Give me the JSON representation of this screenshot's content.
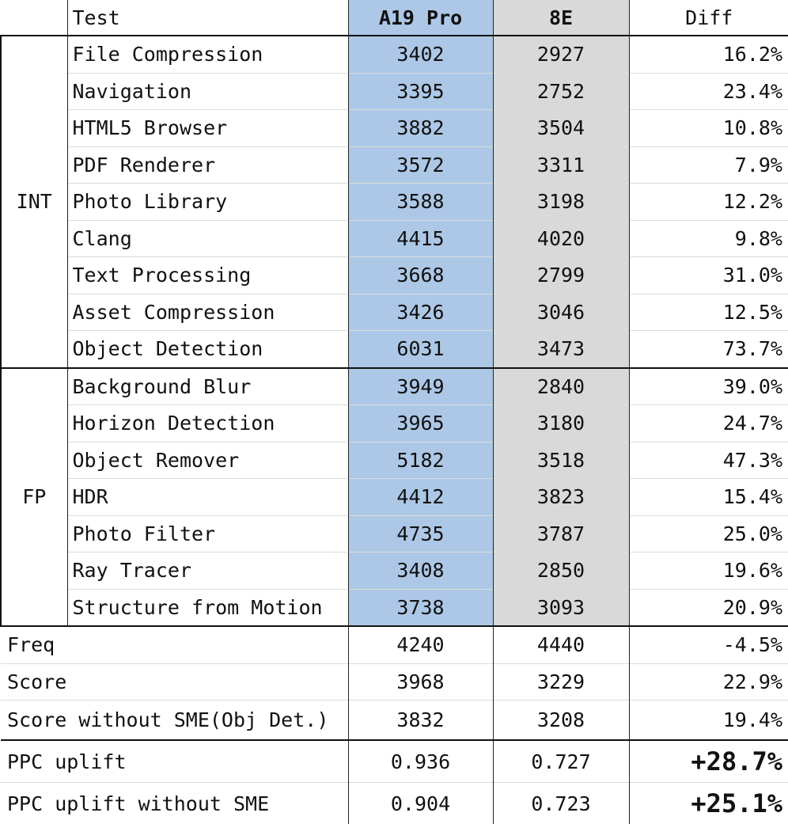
{
  "header": {
    "test": "Test",
    "col_a": "A19 Pro",
    "col_b": "8E",
    "col_diff": "Diff"
  },
  "groups": [
    {
      "label": "INT",
      "rows": [
        {
          "name": "File Compression",
          "a": "3402",
          "b": "2927",
          "diff": "16.2%"
        },
        {
          "name": "Navigation",
          "a": "3395",
          "b": "2752",
          "diff": "23.4%"
        },
        {
          "name": "HTML5 Browser",
          "a": "3882",
          "b": "3504",
          "diff": "10.8%"
        },
        {
          "name": "PDF Renderer",
          "a": "3572",
          "b": "3311",
          "diff": "7.9%"
        },
        {
          "name": "Photo Library",
          "a": "3588",
          "b": "3198",
          "diff": "12.2%"
        },
        {
          "name": "Clang",
          "a": "4415",
          "b": "4020",
          "diff": "9.8%"
        },
        {
          "name": "Text Processing",
          "a": "3668",
          "b": "2799",
          "diff": "31.0%"
        },
        {
          "name": "Asset Compression",
          "a": "3426",
          "b": "3046",
          "diff": "12.5%"
        },
        {
          "name": "Object Detection",
          "a": "6031",
          "b": "3473",
          "diff": "73.7%"
        }
      ]
    },
    {
      "label": "FP",
      "rows": [
        {
          "name": "Background Blur",
          "a": "3949",
          "b": "2840",
          "diff": "39.0%"
        },
        {
          "name": "Horizon Detection",
          "a": "3965",
          "b": "3180",
          "diff": "24.7%"
        },
        {
          "name": "Object Remover",
          "a": "5182",
          "b": "3518",
          "diff": "47.3%"
        },
        {
          "name": "HDR",
          "a": "4412",
          "b": "3823",
          "diff": "15.4%"
        },
        {
          "name": "Photo Filter",
          "a": "4735",
          "b": "3787",
          "diff": "25.0%"
        },
        {
          "name": "Ray Tracer",
          "a": "3408",
          "b": "2850",
          "diff": "19.6%"
        },
        {
          "name": "Structure from Motion",
          "a": "3738",
          "b": "3093",
          "diff": "20.9%"
        }
      ]
    }
  ],
  "summary": [
    {
      "name": "Freq",
      "a": "4240",
      "b": "4440",
      "diff": "-4.5%"
    },
    {
      "name": "Score",
      "a": "3968",
      "b": "3229",
      "diff": "22.9%"
    },
    {
      "name": "Score without SME(Obj Det.)",
      "a": "3832",
      "b": "3208",
      "diff": "19.4%"
    }
  ],
  "ppc": [
    {
      "name": "PPC uplift",
      "a": "0.936",
      "b": "0.727",
      "diff": "+28.7%"
    },
    {
      "name": "PPC uplift without SME",
      "a": "0.904",
      "b": "0.723",
      "diff": "+25.1%"
    }
  ],
  "colors": {
    "a19_fill": "#adc8e6",
    "e8_fill": "#d9d9d9"
  }
}
